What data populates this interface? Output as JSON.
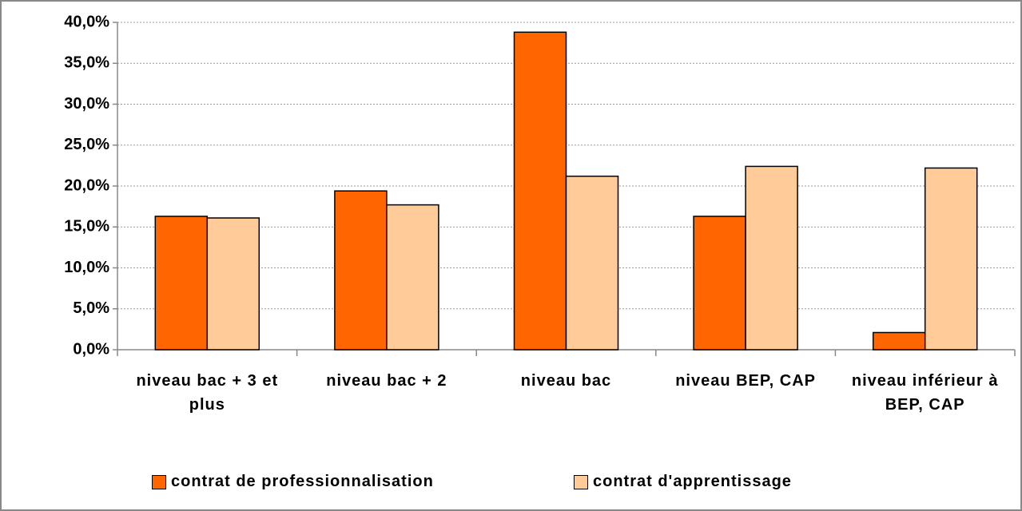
{
  "chart_data": {
    "type": "bar",
    "categories": [
      "niveau bac + 3 et plus",
      "niveau bac + 2",
      "niveau bac",
      "niveau BEP, CAP",
      "niveau inférieur à BEP, CAP"
    ],
    "series": [
      {
        "name": "contrat de professionnalisation",
        "color": "#ff6600",
        "values": [
          16.3,
          19.4,
          38.8,
          16.3,
          2.1
        ]
      },
      {
        "name": "contrat d'apprentissage",
        "color": "#ffcc99",
        "values": [
          16.1,
          17.7,
          21.2,
          22.4,
          22.2
        ]
      }
    ],
    "ylim": [
      0,
      40
    ],
    "yticks": [
      {
        "value": 0,
        "label": "0,0%"
      },
      {
        "value": 5,
        "label": "5,0%"
      },
      {
        "value": 10,
        "label": "10,0%"
      },
      {
        "value": 15,
        "label": "15,0%"
      },
      {
        "value": 20,
        "label": "20,0%"
      },
      {
        "value": 25,
        "label": "25,0%"
      },
      {
        "value": 30,
        "label": "30,0%"
      },
      {
        "value": 35,
        "label": "35,0%"
      },
      {
        "value": 40,
        "label": "40,0%"
      }
    ],
    "grid": true
  }
}
